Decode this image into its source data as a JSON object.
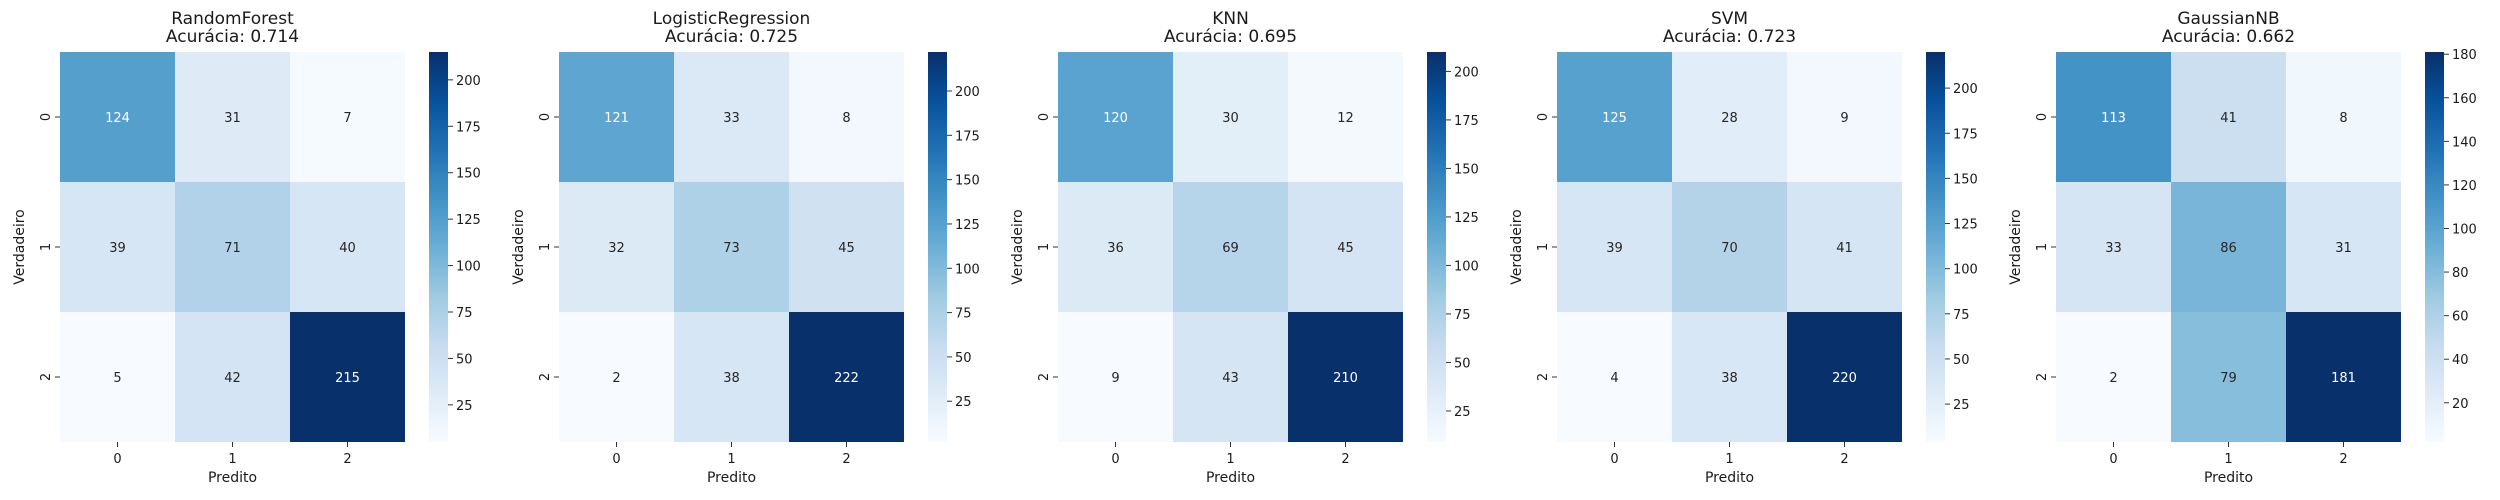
{
  "chart_data": [
    {
      "type": "heatmap",
      "model": "RandomForest",
      "accuracy_label": "Acurácia: 0.714",
      "xlabel": "Predito",
      "ylabel": "Verdadeiro",
      "x_ticks": [
        "0",
        "1",
        "2"
      ],
      "y_ticks": [
        "0",
        "1",
        "2"
      ],
      "matrix": [
        [
          124,
          31,
          7
        ],
        [
          39,
          71,
          40
        ],
        [
          5,
          42,
          215
        ]
      ],
      "colorbar_ticks": [
        25,
        50,
        75,
        100,
        125,
        150,
        175,
        200
      ],
      "colorbar_range": [
        5,
        215
      ],
      "colormap": "Blues"
    },
    {
      "type": "heatmap",
      "model": "LogisticRegression",
      "accuracy_label": "Acurácia: 0.725",
      "xlabel": "Predito",
      "ylabel": "Verdadeiro",
      "x_ticks": [
        "0",
        "1",
        "2"
      ],
      "y_ticks": [
        "0",
        "1",
        "2"
      ],
      "matrix": [
        [
          121,
          33,
          8
        ],
        [
          32,
          73,
          45
        ],
        [
          2,
          38,
          222
        ]
      ],
      "colorbar_ticks": [
        25,
        50,
        75,
        100,
        125,
        150,
        175,
        200
      ],
      "colorbar_range": [
        2,
        222
      ],
      "colormap": "Blues"
    },
    {
      "type": "heatmap",
      "model": "KNN",
      "accuracy_label": "Acurácia: 0.695",
      "xlabel": "Predito",
      "ylabel": "Verdadeiro",
      "x_ticks": [
        "0",
        "1",
        "2"
      ],
      "y_ticks": [
        "0",
        "1",
        "2"
      ],
      "matrix": [
        [
          120,
          30,
          12
        ],
        [
          36,
          69,
          45
        ],
        [
          9,
          43,
          210
        ]
      ],
      "colorbar_ticks": [
        25,
        50,
        75,
        100,
        125,
        150,
        175,
        200
      ],
      "colorbar_range": [
        9,
        210
      ],
      "colormap": "Blues"
    },
    {
      "type": "heatmap",
      "model": "SVM",
      "accuracy_label": "Acurácia: 0.723",
      "xlabel": "Predito",
      "ylabel": "Verdadeiro",
      "x_ticks": [
        "0",
        "1",
        "2"
      ],
      "y_ticks": [
        "0",
        "1",
        "2"
      ],
      "matrix": [
        [
          125,
          28,
          9
        ],
        [
          39,
          70,
          41
        ],
        [
          4,
          38,
          220
        ]
      ],
      "colorbar_ticks": [
        25,
        50,
        75,
        100,
        125,
        150,
        175,
        200
      ],
      "colorbar_range": [
        4,
        220
      ],
      "colormap": "Blues"
    },
    {
      "type": "heatmap",
      "model": "GaussianNB",
      "accuracy_label": "Acurácia: 0.662",
      "xlabel": "Predito",
      "ylabel": "Verdadeiro",
      "x_ticks": [
        "0",
        "1",
        "2"
      ],
      "y_ticks": [
        "0",
        "1",
        "2"
      ],
      "matrix": [
        [
          113,
          41,
          8
        ],
        [
          33,
          86,
          31
        ],
        [
          2,
          79,
          181
        ]
      ],
      "colorbar_ticks": [
        20,
        40,
        60,
        80,
        100,
        120,
        140,
        160,
        180
      ],
      "colorbar_range": [
        2,
        181
      ],
      "colormap": "Blues"
    }
  ]
}
